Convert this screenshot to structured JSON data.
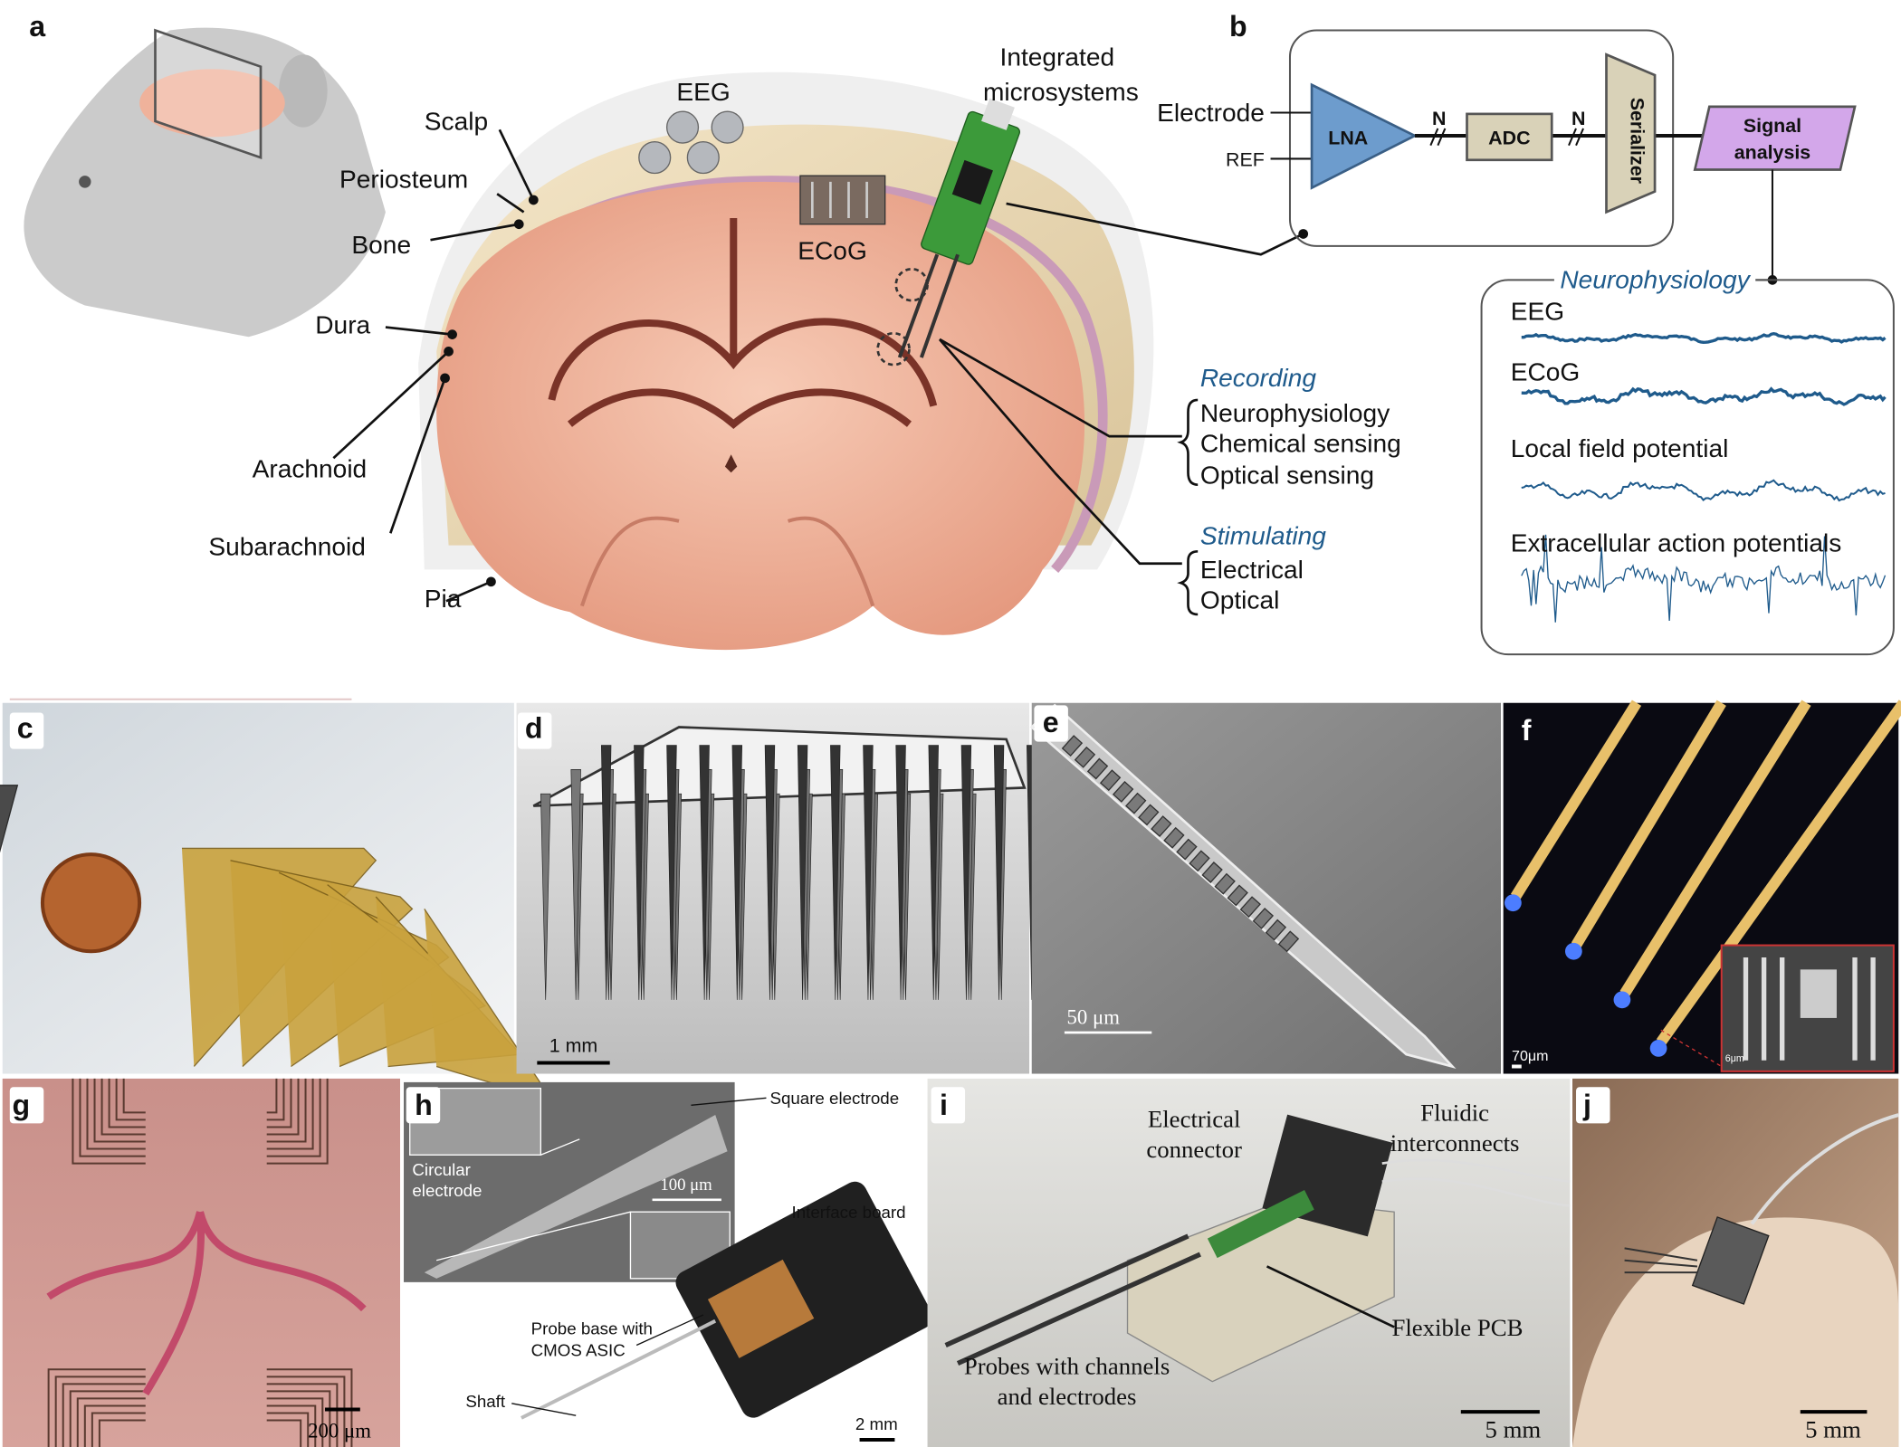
{
  "panels": {
    "a": {
      "label": "a",
      "layers": [
        "Scalp",
        "Periosteum",
        "Bone",
        "Dura",
        "Arachnoid",
        "Subarachnoid",
        "Pia"
      ],
      "devices": [
        "EEG",
        "ECoG"
      ],
      "integrated": [
        "Integrated",
        "microsystems"
      ],
      "recording": {
        "title": "Recording",
        "items": [
          "Neurophysiology",
          "Chemical sensing",
          "Optical sensing"
        ]
      },
      "stimulating": {
        "title": "Stimulating",
        "items": [
          "Electrical",
          "Optical"
        ]
      }
    },
    "b": {
      "label": "b",
      "inputs": [
        "Electrode",
        "REF"
      ],
      "blocks": [
        "LNA",
        "ADC",
        "Serializer"
      ],
      "bus": [
        "N",
        "N"
      ],
      "output": [
        "Signal",
        "analysis"
      ],
      "neuro": {
        "title": "Neurophysiology",
        "signals": [
          "EEG",
          "ECoG",
          "Local field potential",
          "Extracellular action potentials"
        ]
      }
    },
    "c": {
      "label": "c"
    },
    "d": {
      "label": "d",
      "scale": "1 mm"
    },
    "e": {
      "label": "e",
      "scale": "50 μm"
    },
    "f": {
      "label": "f",
      "scale": "70μm",
      "inset_scale": "6μm"
    },
    "g": {
      "label": "g",
      "scale": "200 μm"
    },
    "h": {
      "label": "h",
      "square": "Square electrode",
      "circular": [
        "Circular",
        "electrode"
      ],
      "sem_scale": "100 μm",
      "board": "Interface board",
      "base": [
        "Probe base with",
        "CMOS ASIC"
      ],
      "shaft": "Shaft",
      "scale": "2 mm"
    },
    "i": {
      "label": "i",
      "connector": [
        "Electrical",
        "connector"
      ],
      "fluidic": [
        "Fluidic",
        "interconnects"
      ],
      "pcb": "Flexible PCB",
      "probes": [
        "Probes with channels",
        "and electrodes"
      ],
      "scale": "5 mm"
    },
    "j": {
      "label": "j",
      "scale": "5 mm"
    }
  }
}
